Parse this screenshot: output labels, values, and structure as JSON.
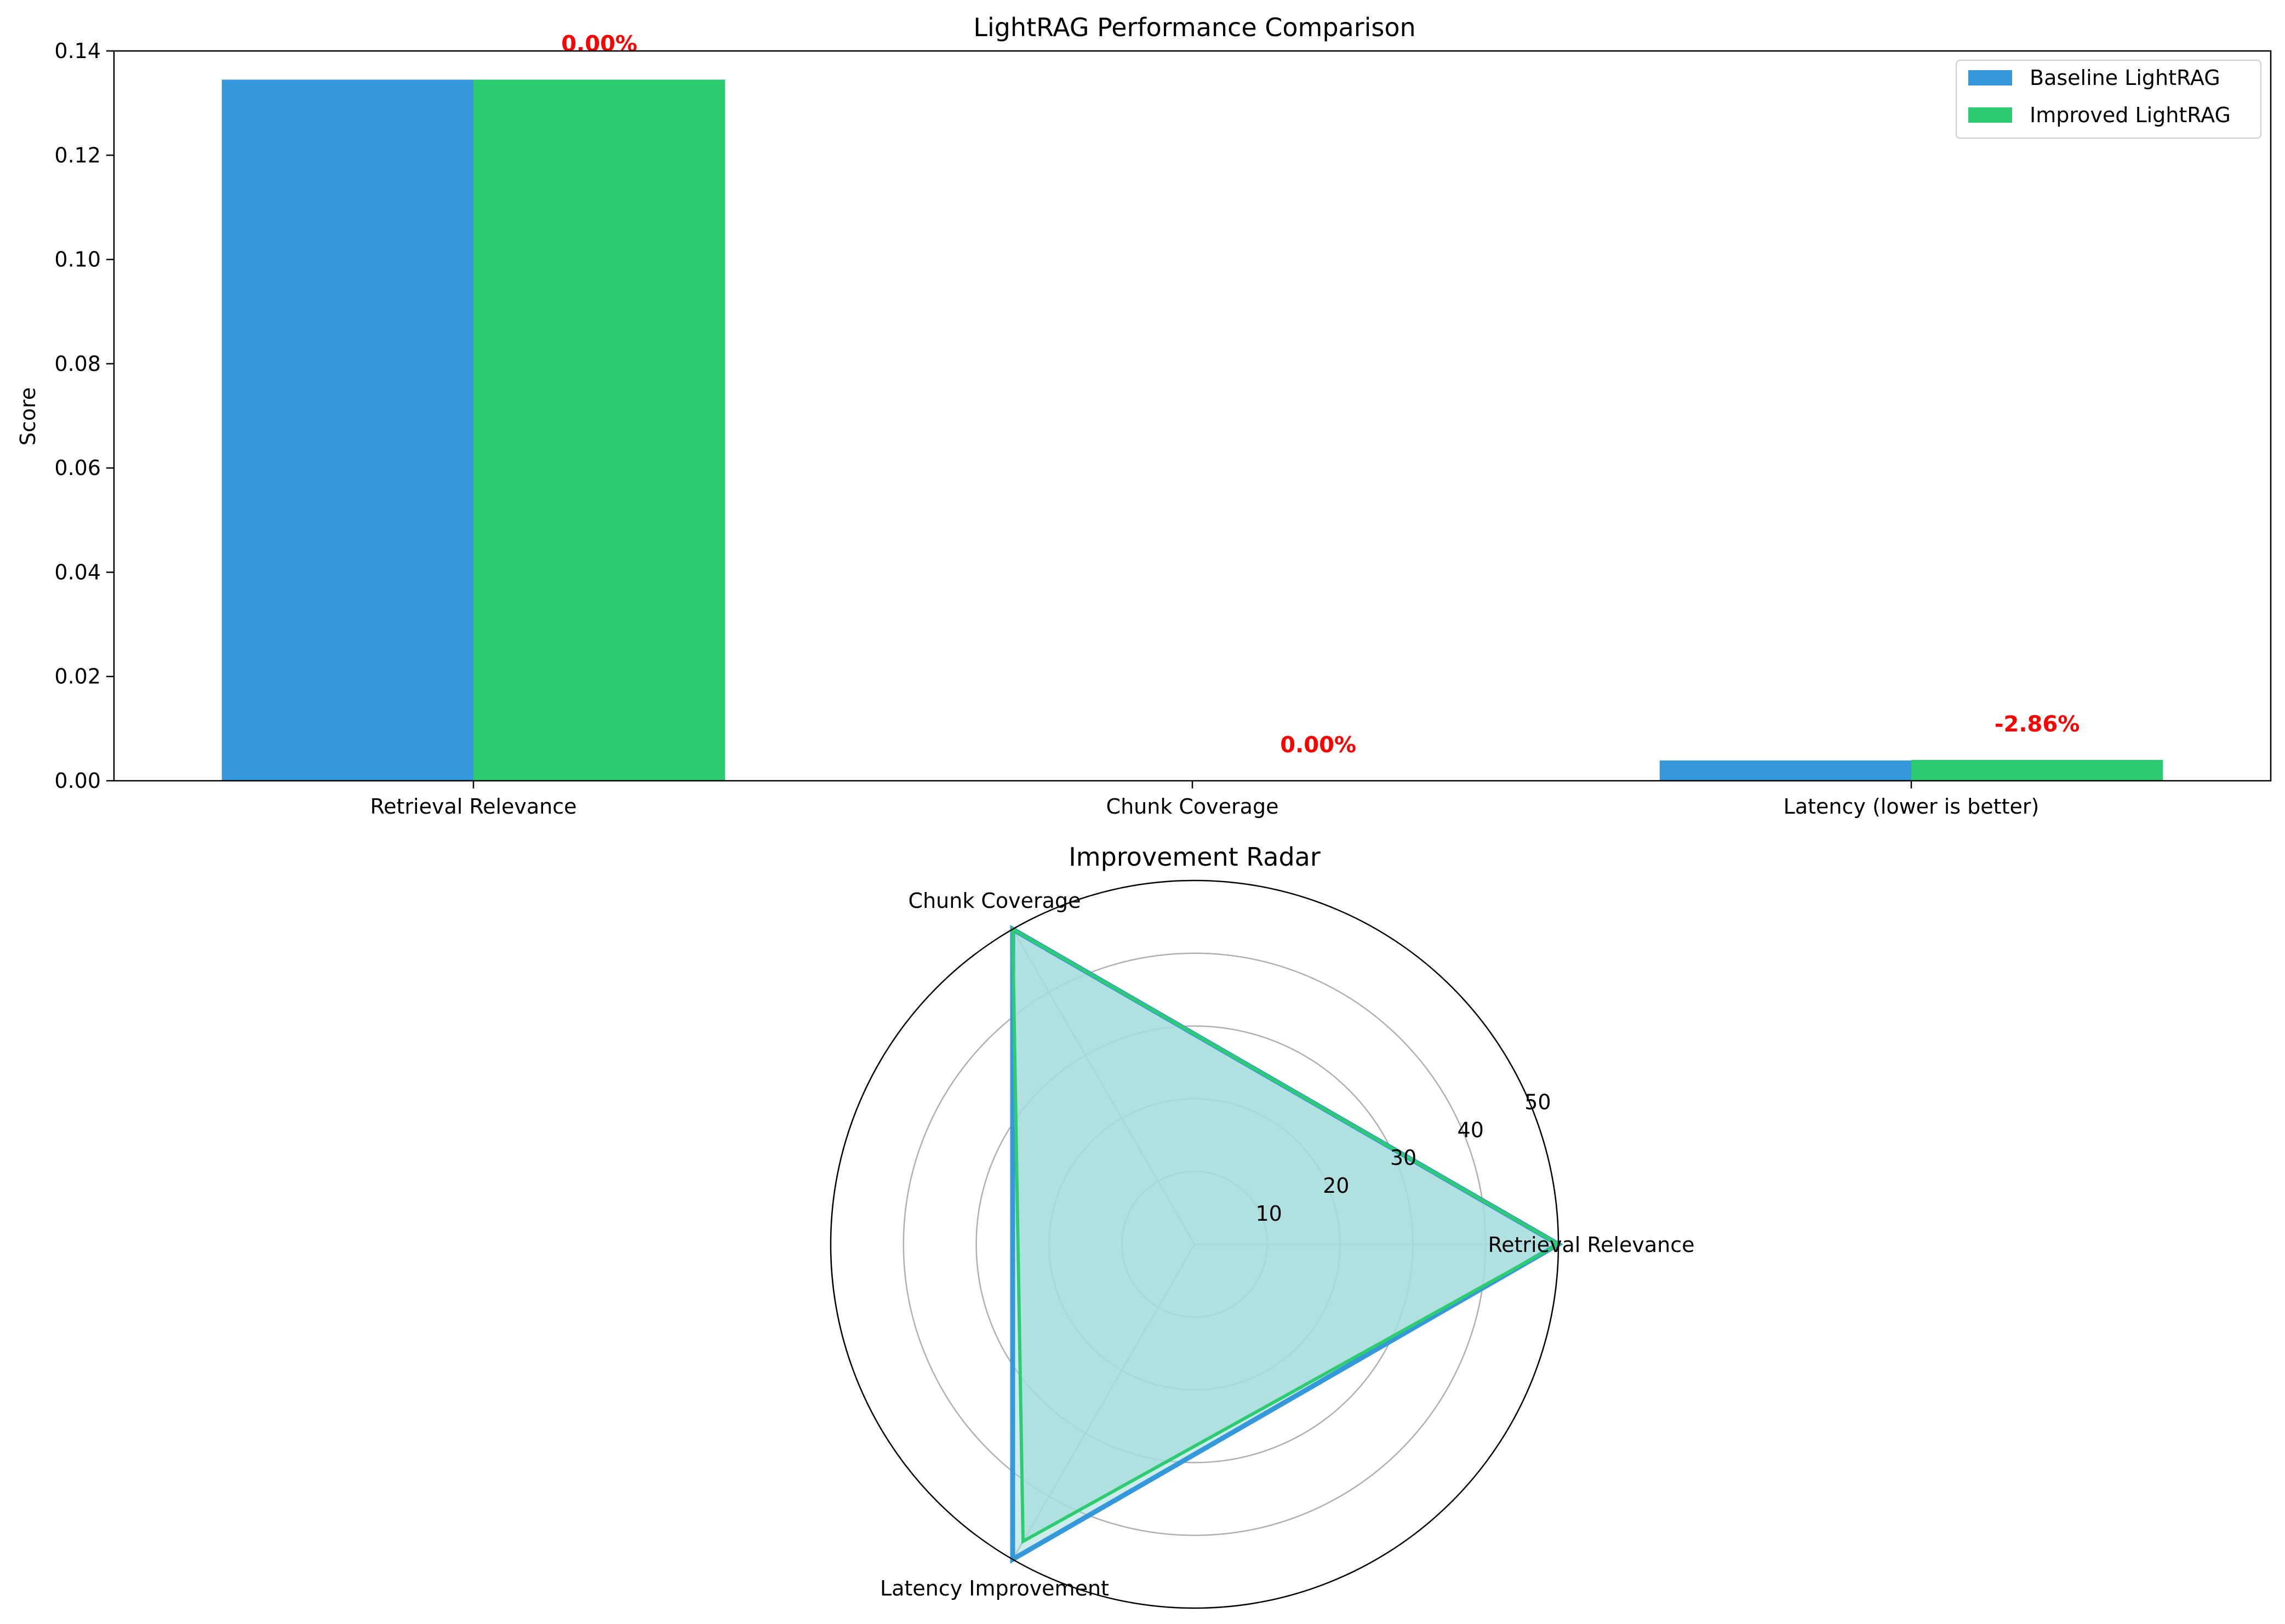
{
  "chart_data": [
    {
      "type": "bar",
      "title": "LightRAG Performance Comparison",
      "xlabel": "",
      "ylabel": "Score",
      "ylim": [
        0,
        0.14
      ],
      "yticks": [
        "0.00",
        "0.02",
        "0.04",
        "0.06",
        "0.08",
        "0.10",
        "0.12",
        "0.14"
      ],
      "ytick_values": [
        0,
        0.02,
        0.04,
        0.06,
        0.08,
        0.1,
        0.12,
        0.14
      ],
      "categories": [
        "Retrieval Relevance",
        "Chunk Coverage",
        "Latency (lower is better)"
      ],
      "series": [
        {
          "name": "Baseline LightRAG",
          "color": "#3498db",
          "values": [
            0.1345,
            0.0,
            0.0039
          ]
        },
        {
          "name": "Improved LightRAG",
          "color": "#2ecc71",
          "values": [
            0.1345,
            0.0,
            0.004
          ]
        }
      ],
      "annotations": [
        "0.00%",
        "0.00%",
        "-2.86%"
      ],
      "annotation_color": "#ff0000",
      "legend": "top-right",
      "grid": false
    },
    {
      "type": "radar",
      "title": "Improvement Radar",
      "categories": [
        "Retrieval Relevance",
        "Chunk Coverage",
        "Latency Improvement"
      ],
      "rlim": [
        0,
        50
      ],
      "rticks": [
        "10",
        "20",
        "30",
        "40",
        "50"
      ],
      "rtick_values": [
        10,
        20,
        30,
        40,
        50
      ],
      "fill_color": "#a6dcdc",
      "series": [
        {
          "color": "#3498db",
          "values": [
            50,
            50,
            50
          ]
        },
        {
          "color": "#2ecc71",
          "values": [
            50,
            50,
            47.14
          ]
        }
      ],
      "grid": true
    }
  ]
}
